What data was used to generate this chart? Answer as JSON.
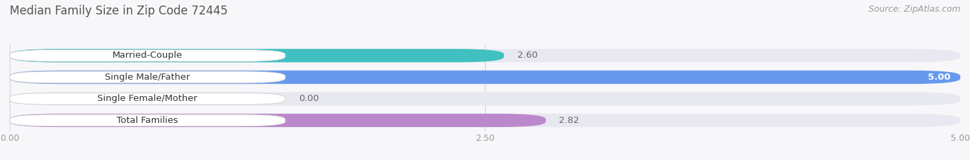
{
  "title": "Median Family Size in Zip Code 72445",
  "source": "Source: ZipAtlas.com",
  "categories": [
    "Married-Couple",
    "Single Male/Father",
    "Single Female/Mother",
    "Total Families"
  ],
  "values": [
    2.6,
    5.0,
    0.0,
    2.82
  ],
  "bar_colors": [
    "#40c0c0",
    "#6699ee",
    "#ff99bb",
    "#bb88cc"
  ],
  "bar_bg_color": "#e8e8f0",
  "xlim": [
    0,
    5.0
  ],
  "xticks": [
    0.0,
    2.5,
    5.0
  ],
  "xtick_labels": [
    "0.00",
    "2.50",
    "5.00"
  ],
  "title_fontsize": 12,
  "label_fontsize": 9.5,
  "tick_fontsize": 9,
  "source_fontsize": 9,
  "background_color": "#f7f7fa"
}
